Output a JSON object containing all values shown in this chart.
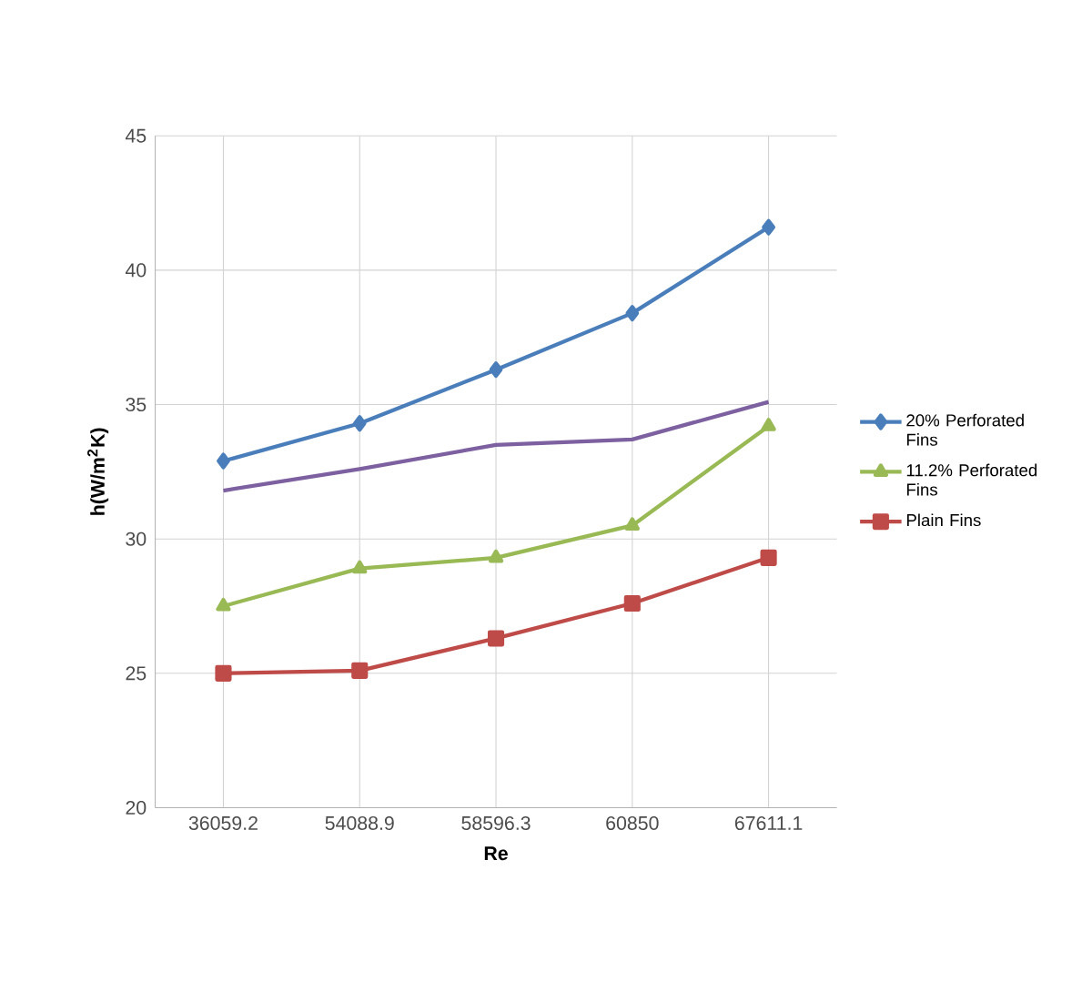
{
  "chart_data": {
    "type": "line",
    "xlabel": "Re",
    "ylabel": "h(W/m$^{2}$K)",
    "categories": [
      "36059.2",
      "54088.9",
      "58596.3",
      "60850",
      "67611.1"
    ],
    "ylim": [
      20,
      45
    ],
    "yticks": [
      20,
      25,
      30,
      35,
      40,
      45
    ],
    "grid": true,
    "legend": "right",
    "series": [
      {
        "name": "20% Perforated Fins",
        "color": "#4a7ebb",
        "marker": "diamond",
        "values": [
          32.9,
          34.3,
          36.3,
          38.4,
          41.6
        ]
      },
      {
        "color": "#7d60a0",
        "marker": "none",
        "values": [
          31.8,
          32.6,
          33.5,
          33.7,
          35.1
        ]
      },
      {
        "name": "11.2% Perforated Fins",
        "color": "#98b954",
        "marker": "triangle",
        "values": [
          27.5,
          28.9,
          29.3,
          30.5,
          34.2
        ]
      },
      {
        "name": "Plain Fins",
        "color": "#be4b48",
        "marker": "square",
        "values": [
          25.0,
          25.1,
          26.3,
          27.6,
          29.3
        ]
      }
    ]
  }
}
